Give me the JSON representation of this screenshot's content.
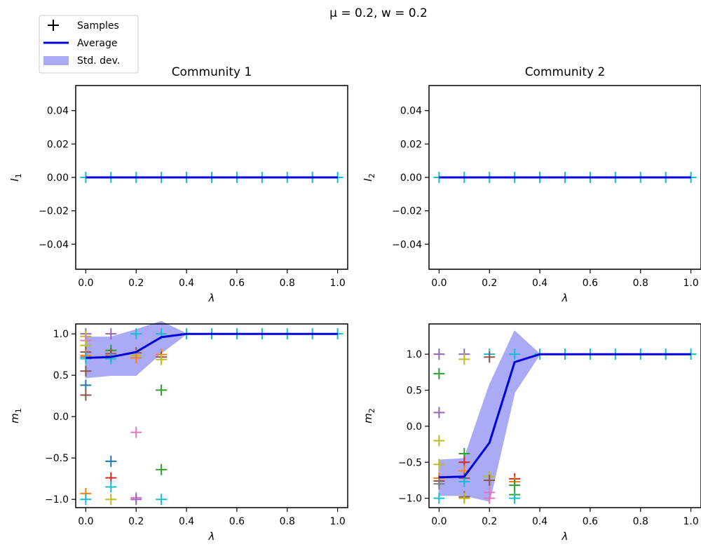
{
  "figure": {
    "suptitle": "μ = 0.2, w = 0.2",
    "legend": {
      "placement": "top-left",
      "entries": [
        {
          "label": "Samples",
          "kind": "marker",
          "color": "#000000"
        },
        {
          "label": "Average",
          "kind": "line",
          "color": "#0000dd"
        },
        {
          "label": "Std. dev.",
          "kind": "band",
          "color": "#aaaaf5"
        }
      ]
    }
  },
  "chart_data": [
    {
      "id": "p1",
      "type": "scatter",
      "title": "Community 1",
      "xlabel": "λ",
      "ylabel": "I",
      "ylabel_sub": "1",
      "xlim": [
        -0.04,
        1.04
      ],
      "ylim": [
        -0.055,
        0.055
      ],
      "xticks": [
        0.0,
        0.2,
        0.4,
        0.6,
        0.8,
        1.0
      ],
      "yticks": [
        -0.04,
        -0.02,
        0.0,
        0.02,
        0.04
      ],
      "xtick_labels": [
        "0.0",
        "0.2",
        "0.4",
        "0.6",
        "0.8",
        "1.0"
      ],
      "ytick_labels": [
        "−0.04",
        "−0.02",
        "0.00",
        "0.02",
        "0.04"
      ],
      "x": [
        0.0,
        0.1,
        0.2,
        0.3,
        0.4,
        0.5,
        0.6,
        0.7,
        0.8,
        0.9,
        1.0
      ],
      "average": [
        0,
        0,
        0,
        0,
        0,
        0,
        0,
        0,
        0,
        0,
        0
      ],
      "std_low": [
        0,
        0,
        0,
        0,
        0,
        0,
        0,
        0,
        0,
        0,
        0
      ],
      "std_high": [
        0,
        0,
        0,
        0,
        0,
        0,
        0,
        0,
        0,
        0,
        0
      ],
      "samples": [
        [
          0.0,
          0,
          "#17becf"
        ],
        [
          0.1,
          0,
          "#17becf"
        ],
        [
          0.2,
          0,
          "#17becf"
        ],
        [
          0.3,
          0,
          "#17becf"
        ],
        [
          0.4,
          0,
          "#17becf"
        ],
        [
          0.5,
          0,
          "#17becf"
        ],
        [
          0.6,
          0,
          "#17becf"
        ],
        [
          0.7,
          0,
          "#17becf"
        ],
        [
          0.8,
          0,
          "#17becf"
        ],
        [
          0.9,
          0,
          "#17becf"
        ],
        [
          1.0,
          0,
          "#17becf"
        ]
      ]
    },
    {
      "id": "p2",
      "type": "scatter",
      "title": "Community 2",
      "xlabel": "λ",
      "ylabel": "I",
      "ylabel_sub": "2",
      "xlim": [
        -0.04,
        1.04
      ],
      "ylim": [
        -0.055,
        0.055
      ],
      "xticks": [
        0.0,
        0.2,
        0.4,
        0.6,
        0.8,
        1.0
      ],
      "yticks": [
        -0.04,
        -0.02,
        0.0,
        0.02,
        0.04
      ],
      "xtick_labels": [
        "0.0",
        "0.2",
        "0.4",
        "0.6",
        "0.8",
        "1.0"
      ],
      "ytick_labels": [
        "−0.04",
        "−0.02",
        "0.00",
        "0.02",
        "0.04"
      ],
      "x": [
        0.0,
        0.1,
        0.2,
        0.3,
        0.4,
        0.5,
        0.6,
        0.7,
        0.8,
        0.9,
        1.0
      ],
      "average": [
        0,
        0,
        0,
        0,
        0,
        0,
        0,
        0,
        0,
        0,
        0
      ],
      "std_low": [
        0,
        0,
        0,
        0,
        0,
        0,
        0,
        0,
        0,
        0,
        0
      ],
      "std_high": [
        0,
        0,
        0,
        0,
        0,
        0,
        0,
        0,
        0,
        0,
        0
      ],
      "samples": [
        [
          0.0,
          0,
          "#17becf"
        ],
        [
          0.1,
          0,
          "#17becf"
        ],
        [
          0.2,
          0,
          "#17becf"
        ],
        [
          0.3,
          0,
          "#17becf"
        ],
        [
          0.4,
          0,
          "#17becf"
        ],
        [
          0.5,
          0,
          "#17becf"
        ],
        [
          0.6,
          0,
          "#17becf"
        ],
        [
          0.7,
          0,
          "#17becf"
        ],
        [
          0.8,
          0,
          "#17becf"
        ],
        [
          0.9,
          0,
          "#17becf"
        ],
        [
          1.0,
          0,
          "#17becf"
        ]
      ]
    },
    {
      "id": "p3",
      "type": "scatter",
      "title": "",
      "xlabel": "λ",
      "ylabel": "m",
      "ylabel_sub": "1",
      "xlim": [
        -0.04,
        1.04
      ],
      "ylim": [
        -1.1,
        1.12
      ],
      "xticks": [
        0.0,
        0.2,
        0.4,
        0.6,
        0.8,
        1.0
      ],
      "yticks": [
        -1.0,
        -0.5,
        0.0,
        0.5,
        1.0
      ],
      "xtick_labels": [
        "0.0",
        "0.2",
        "0.4",
        "0.6",
        "0.8",
        "1.0"
      ],
      "ytick_labels": [
        "−1.0",
        "−0.5",
        "0.0",
        "0.5",
        "1.0"
      ],
      "x": [
        0.0,
        0.1,
        0.2,
        0.3,
        0.4,
        0.5,
        0.6,
        0.7,
        0.8,
        0.9,
        1.0
      ],
      "average": [
        0.71,
        0.72,
        0.78,
        0.96,
        1.0,
        1.0,
        1.0,
        1.0,
        1.0,
        1.0,
        1.0
      ],
      "std_low": [
        0.47,
        0.5,
        0.5,
        0.77,
        1.0,
        1.0,
        1.0,
        1.0,
        1.0,
        1.0,
        1.0
      ],
      "std_high": [
        0.96,
        0.96,
        1.05,
        1.15,
        1.0,
        1.0,
        1.0,
        1.0,
        1.0,
        1.0,
        1.0
      ],
      "samples": [
        [
          0.0,
          1.0,
          "#9467bd"
        ],
        [
          0.0,
          0.97,
          "#bcbd22"
        ],
        [
          0.0,
          0.92,
          "#e377c2"
        ],
        [
          0.0,
          0.86,
          "#bcbd22"
        ],
        [
          0.0,
          0.78,
          "#8c564b"
        ],
        [
          0.0,
          0.74,
          "#ff7f0e"
        ],
        [
          0.0,
          0.72,
          "#7f7f7f"
        ],
        [
          0.0,
          0.7,
          "#17becf"
        ],
        [
          0.0,
          0.55,
          "#8c564b"
        ],
        [
          0.0,
          0.38,
          "#1f77b4"
        ],
        [
          0.0,
          0.26,
          "#8c564b"
        ],
        [
          0.0,
          -0.93,
          "#ff7f0e"
        ],
        [
          0.0,
          -1.0,
          "#17becf"
        ],
        [
          0.1,
          1.0,
          "#9467bd"
        ],
        [
          0.1,
          0.8,
          "#2ca02c"
        ],
        [
          0.1,
          0.76,
          "#8c564b"
        ],
        [
          0.1,
          0.73,
          "#d62728"
        ],
        [
          0.1,
          0.7,
          "#17becf"
        ],
        [
          0.1,
          -0.54,
          "#1f77b4"
        ],
        [
          0.1,
          -0.74,
          "#d62728"
        ],
        [
          0.1,
          -0.85,
          "#17becf"
        ],
        [
          0.1,
          -1.0,
          "#bcbd22"
        ],
        [
          0.2,
          1.0,
          "#17becf"
        ],
        [
          0.2,
          0.77,
          "#8c564b"
        ],
        [
          0.2,
          0.74,
          "#bcbd22"
        ],
        [
          0.2,
          0.71,
          "#ff7f0e"
        ],
        [
          0.2,
          -0.19,
          "#e377c2"
        ],
        [
          0.2,
          -0.98,
          "#e377c2"
        ],
        [
          0.2,
          -1.0,
          "#9467bd"
        ],
        [
          0.3,
          1.0,
          "#17becf"
        ],
        [
          0.3,
          0.75,
          "#ff7f0e"
        ],
        [
          0.3,
          0.72,
          "#8c564b"
        ],
        [
          0.3,
          0.69,
          "#bcbd22"
        ],
        [
          0.3,
          0.32,
          "#2ca02c"
        ],
        [
          0.3,
          -0.64,
          "#2ca02c"
        ],
        [
          0.3,
          -1.0,
          "#17becf"
        ],
        [
          0.4,
          1.0,
          "#17becf"
        ],
        [
          0.5,
          1.0,
          "#17becf"
        ],
        [
          0.6,
          1.0,
          "#17becf"
        ],
        [
          0.7,
          1.0,
          "#17becf"
        ],
        [
          0.8,
          1.0,
          "#17becf"
        ],
        [
          0.9,
          1.0,
          "#17becf"
        ],
        [
          1.0,
          1.0,
          "#17becf"
        ]
      ]
    },
    {
      "id": "p4",
      "type": "scatter",
      "title": "",
      "xlabel": "λ",
      "ylabel": "m",
      "ylabel_sub": "2",
      "xlim": [
        -0.04,
        1.04
      ],
      "ylim": [
        -1.13,
        1.42
      ],
      "xticks": [
        0.0,
        0.2,
        0.4,
        0.6,
        0.8,
        1.0
      ],
      "yticks": [
        -1.0,
        -0.5,
        0.0,
        0.5,
        1.0
      ],
      "xtick_labels": [
        "0.0",
        "0.2",
        "0.4",
        "0.6",
        "0.8",
        "1.0"
      ],
      "ytick_labels": [
        "−1.0",
        "−0.5",
        "0.0",
        "0.5",
        "1.0"
      ],
      "x": [
        0.0,
        0.1,
        0.2,
        0.3,
        0.4,
        0.5,
        0.6,
        0.7,
        0.8,
        0.9,
        1.0
      ],
      "average": [
        -0.71,
        -0.7,
        -0.23,
        0.89,
        1.0,
        1.0,
        1.0,
        1.0,
        1.0,
        1.0,
        1.0
      ],
      "std_low": [
        -0.96,
        -0.96,
        -1.04,
        0.47,
        1.0,
        1.0,
        1.0,
        1.0,
        1.0,
        1.0,
        1.0
      ],
      "std_high": [
        -0.47,
        -0.45,
        0.57,
        1.32,
        1.0,
        1.0,
        1.0,
        1.0,
        1.0,
        1.0,
        1.0
      ],
      "samples": [
        [
          0.0,
          1.0,
          "#9467bd"
        ],
        [
          0.0,
          0.73,
          "#2ca02c"
        ],
        [
          0.0,
          0.19,
          "#9467bd"
        ],
        [
          0.0,
          -0.2,
          "#bcbd22"
        ],
        [
          0.0,
          -0.53,
          "#bcbd22"
        ],
        [
          0.0,
          -0.72,
          "#ff7f0e"
        ],
        [
          0.0,
          -0.76,
          "#8c564b"
        ],
        [
          0.0,
          -0.8,
          "#7f7f7f"
        ],
        [
          0.0,
          -1.0,
          "#17becf"
        ],
        [
          0.1,
          1.0,
          "#9467bd"
        ],
        [
          0.1,
          0.93,
          "#bcbd22"
        ],
        [
          0.1,
          -0.38,
          "#2ca02c"
        ],
        [
          0.1,
          -0.5,
          "#d62728"
        ],
        [
          0.1,
          -0.62,
          "#ff7f0e"
        ],
        [
          0.1,
          -0.72,
          "#8c564b"
        ],
        [
          0.1,
          -0.77,
          "#17becf"
        ],
        [
          0.1,
          -0.98,
          "#8c564b"
        ],
        [
          0.1,
          -1.0,
          "#bcbd22"
        ],
        [
          0.2,
          1.0,
          "#17becf"
        ],
        [
          0.2,
          0.96,
          "#8c564b"
        ],
        [
          0.2,
          -0.7,
          "#bcbd22"
        ],
        [
          0.2,
          -0.75,
          "#8c564b"
        ],
        [
          0.2,
          -0.92,
          "#e377c2"
        ],
        [
          0.2,
          -1.0,
          "#e377c2"
        ],
        [
          0.3,
          1.0,
          "#17becf"
        ],
        [
          0.3,
          -0.73,
          "#d62728"
        ],
        [
          0.3,
          -0.77,
          "#ff7f0e"
        ],
        [
          0.3,
          -0.82,
          "#2ca02c"
        ],
        [
          0.3,
          -0.95,
          "#2ca02c"
        ],
        [
          0.3,
          -1.0,
          "#17becf"
        ],
        [
          0.4,
          1.0,
          "#17becf"
        ],
        [
          0.5,
          1.0,
          "#17becf"
        ],
        [
          0.6,
          1.0,
          "#17becf"
        ],
        [
          0.7,
          1.0,
          "#17becf"
        ],
        [
          0.8,
          1.0,
          "#17becf"
        ],
        [
          0.9,
          1.0,
          "#17becf"
        ],
        [
          1.0,
          1.0,
          "#17becf"
        ]
      ]
    }
  ]
}
